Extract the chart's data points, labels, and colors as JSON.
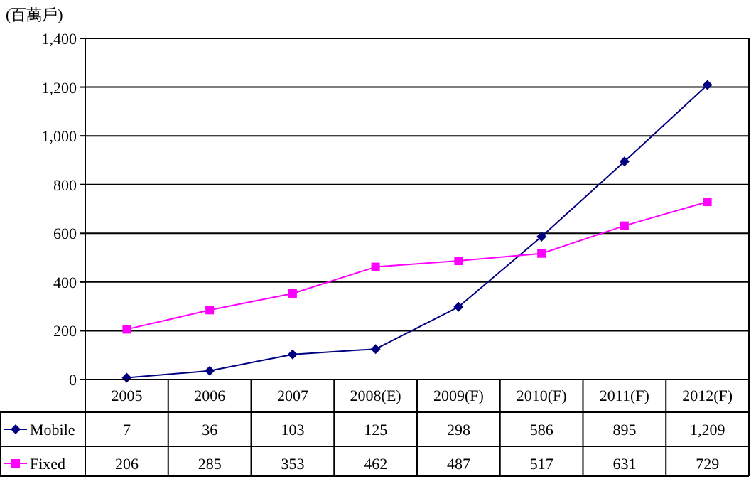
{
  "chart_data": {
    "type": "line",
    "ylabel": "(百萬戶)",
    "categories": [
      "2005",
      "2006",
      "2007",
      "2008(E)",
      "2009(F)",
      "2010(F)",
      "2011(F)",
      "2012(F)"
    ],
    "series": [
      {
        "name": "Mobile",
        "color": "#000080",
        "marker": "diamond",
        "values": [
          7,
          36,
          103,
          125,
          298,
          586,
          895,
          1209
        ],
        "value_labels": [
          "7",
          "36",
          "103",
          "125",
          "298",
          "586",
          "895",
          "1,209"
        ]
      },
      {
        "name": "Fixed",
        "color": "#ff00ff",
        "marker": "square",
        "values": [
          206,
          285,
          353,
          462,
          487,
          517,
          631,
          729
        ],
        "value_labels": [
          "206",
          "285",
          "353",
          "462",
          "487",
          "517",
          "631",
          "729"
        ]
      }
    ],
    "ylim": [
      0,
      1400
    ],
    "yticks": [
      0,
      {
        "value": 200,
        "label": "200"
      },
      {
        "value": 400,
        "label": "400"
      },
      {
        "value": 600,
        "label": "600"
      },
      {
        "value": 800,
        "label": "800"
      },
      {
        "value": 1000,
        "label": "1,000"
      },
      {
        "value": 1200,
        "label": "1,200"
      },
      {
        "value": 1400,
        "label": "1,400"
      }
    ],
    "grid": "y",
    "legend": "bottom",
    "line_style": "solid"
  }
}
